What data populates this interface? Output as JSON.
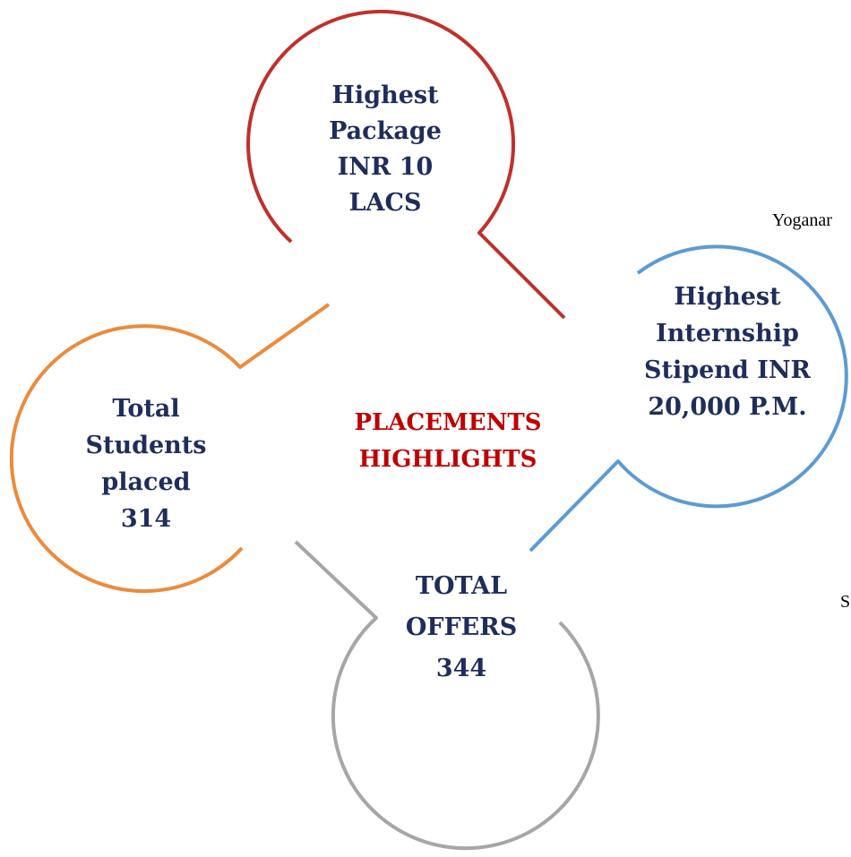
{
  "center": {
    "lines": [
      "PLACEMENTS",
      "HIGHLIGHTS"
    ]
  },
  "nodes": [
    {
      "lines": [
        "Highest",
        "Package",
        "INR 10",
        "LACS"
      ]
    },
    {
      "lines": [
        "Highest",
        "Internship",
        "Stipend INR",
        "20,000 P.M."
      ]
    },
    {
      "lines": [
        "Total",
        "Students",
        "placed",
        "314"
      ]
    },
    {
      "lines": [
        "TOTAL",
        "OFFERS",
        "344"
      ]
    }
  ],
  "side_texts": [
    "Yoganar",
    "S"
  ]
}
